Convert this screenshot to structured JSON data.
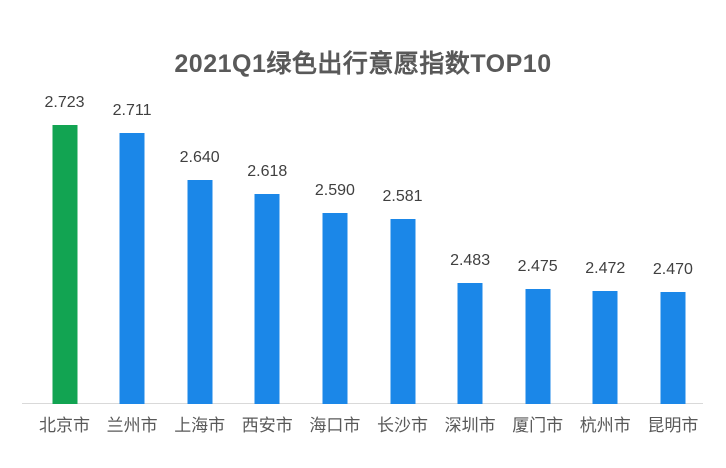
{
  "chart_data": {
    "type": "bar",
    "title": "2021Q1绿色出行意愿指数TOP10",
    "categories": [
      "北京市",
      "兰州市",
      "上海市",
      "西安市",
      "海口市",
      "长沙市",
      "深圳市",
      "厦门市",
      "杭州市",
      "昆明市"
    ],
    "values": [
      2.723,
      2.711,
      2.64,
      2.618,
      2.59,
      2.581,
      2.483,
      2.475,
      2.472,
      2.47
    ],
    "values_text": [
      "2.723",
      "2.711",
      "2.640",
      "2.618",
      "2.590",
      "2.581",
      "2.483",
      "2.475",
      "2.472",
      "2.470"
    ],
    "xlabel": "",
    "ylabel": "",
    "ylim": [
      2.3,
      2.75
    ],
    "grid": false,
    "legend": false,
    "highlight_index": 0,
    "colors": {
      "highlight_bar": "#12a452",
      "default_bar": "#1b87e8",
      "axis_line": "#d9d9d9",
      "title_text": "#595959",
      "value_label_text": "#404040",
      "category_label_text": "#595959",
      "background": "#ffffff"
    }
  }
}
